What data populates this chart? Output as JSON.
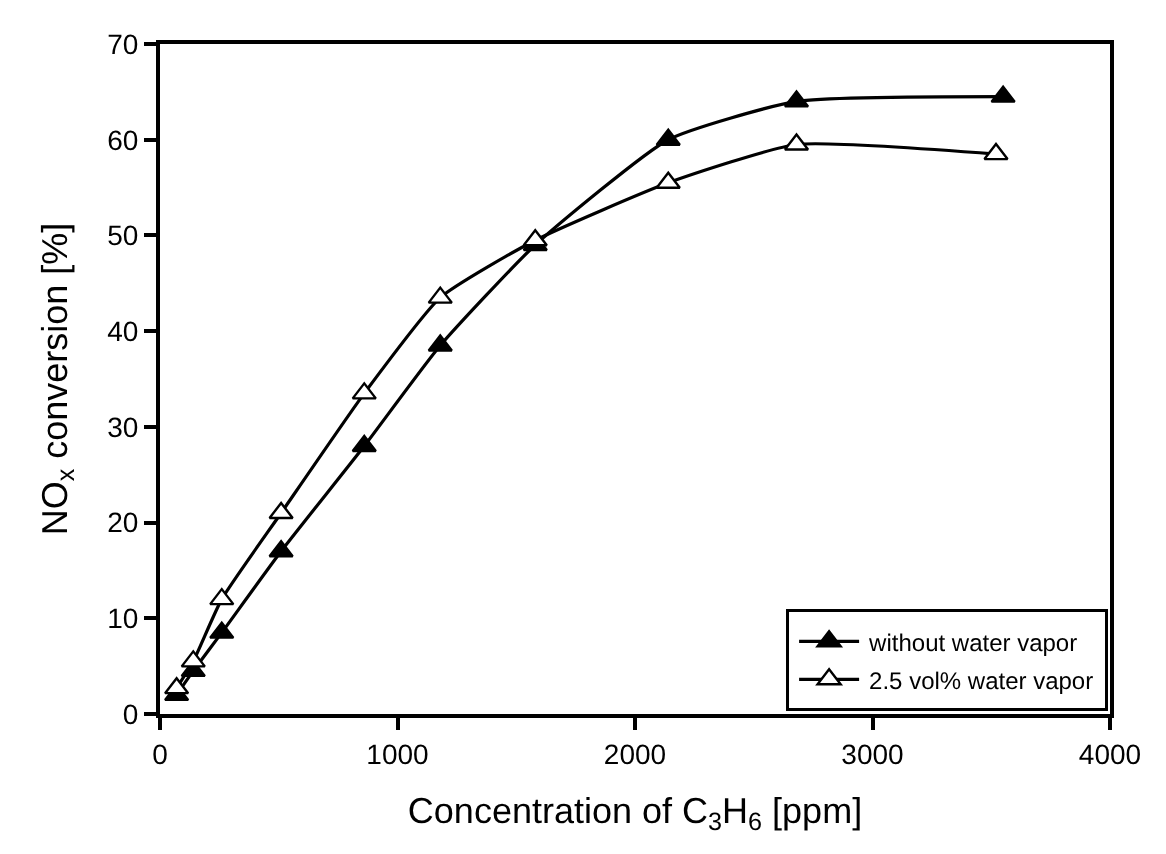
{
  "chart_data": {
    "type": "line",
    "xlabel": "Concentration of C$_{3}$H$_{6}$ [ppm]",
    "ylabel": "NO$_{x}$ conversion [%]",
    "xlim": [
      0,
      4000
    ],
    "xticks": [
      0,
      1000,
      2000,
      3000,
      4000
    ],
    "ylim": [
      0,
      70
    ],
    "yticks": [
      0,
      10,
      20,
      30,
      40,
      50,
      60,
      70
    ],
    "legend": "bottom right",
    "marker": "triangle",
    "line_style": "solid",
    "series": [
      {
        "name": "without water vapor",
        "color": "#000000",
        "x": [
          70,
          140,
          260,
          510,
          860,
          1180,
          1580,
          2140,
          2680,
          3550
        ],
        "values": [
          2,
          4.5,
          8.5,
          17,
          28,
          38.5,
          49,
          60,
          64,
          64.5
        ]
      },
      {
        "name": "2.5 vol% water vapor",
        "color": "#ffffff",
        "x": [
          70,
          140,
          260,
          510,
          860,
          1180,
          1580,
          2140,
          2680,
          3520
        ],
        "values": [
          2.7,
          5.5,
          12,
          21,
          33.5,
          43.5,
          49.5,
          55.5,
          59.5,
          58.5
        ]
      }
    ]
  }
}
